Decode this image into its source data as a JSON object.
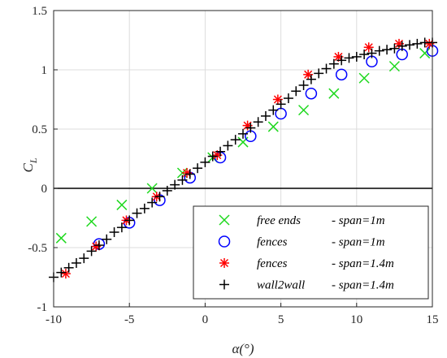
{
  "chart_data": {
    "type": "scatter",
    "xlabel": "α(°)",
    "ylabel_main": "C",
    "ylabel_sub": "L",
    "xlim": [
      -10,
      15
    ],
    "ylim": [
      -1,
      1.5
    ],
    "xticks": [
      -10,
      -5,
      0,
      5,
      10,
      15
    ],
    "yticks": [
      -1,
      -0.5,
      0,
      0.5,
      1,
      1.5
    ],
    "xtick_labels": [
      "-10",
      "-5",
      "0",
      "5",
      "10",
      "15"
    ],
    "ytick_labels": [
      "-1",
      "-0.5",
      "0",
      "0.5",
      "1",
      "1.5"
    ],
    "grid": true,
    "zero_line": true,
    "legend_position": "bottom-right",
    "series": [
      {
        "name": "free ends",
        "span": "- span=1m",
        "marker": "x",
        "color": "#1ed81e",
        "points": [
          [
            -9.5,
            -0.42
          ],
          [
            -7.5,
            -0.28
          ],
          [
            -5.5,
            -0.14
          ],
          [
            -3.5,
            0.0
          ],
          [
            -1.5,
            0.13
          ],
          [
            0.5,
            0.26
          ],
          [
            2.5,
            0.39
          ],
          [
            4.5,
            0.52
          ],
          [
            6.5,
            0.66
          ],
          [
            8.5,
            0.8
          ],
          [
            10.5,
            0.93
          ],
          [
            12.5,
            1.03
          ],
          [
            14.5,
            1.14
          ]
        ]
      },
      {
        "name": "fences",
        "span": "- span=1m",
        "marker": "circle",
        "color": "#0000ff",
        "points": [
          [
            -7,
            -0.47
          ],
          [
            -5,
            -0.29
          ],
          [
            -3,
            -0.1
          ],
          [
            -1,
            0.09
          ],
          [
            1,
            0.26
          ],
          [
            3,
            0.44
          ],
          [
            5,
            0.63
          ],
          [
            7,
            0.8
          ],
          [
            9,
            0.96
          ],
          [
            11,
            1.07
          ],
          [
            13,
            1.13
          ],
          [
            15,
            1.16
          ]
        ]
      },
      {
        "name": "fences",
        "span": "- span=1.4m",
        "marker": "asterisk",
        "color": "#ff0000",
        "points": [
          [
            -9.2,
            -0.72
          ],
          [
            -7.2,
            -0.49
          ],
          [
            -5.2,
            -0.27
          ],
          [
            -3.2,
            -0.07
          ],
          [
            -1.2,
            0.13
          ],
          [
            0.8,
            0.28
          ],
          [
            2.8,
            0.53
          ],
          [
            4.8,
            0.75
          ],
          [
            6.8,
            0.96
          ],
          [
            8.8,
            1.11
          ],
          [
            10.8,
            1.19
          ],
          [
            12.8,
            1.22
          ],
          [
            14.8,
            1.22
          ]
        ]
      },
      {
        "name": "wall2wall",
        "span": "- span=1.4m",
        "marker": "plus",
        "color": "#000000",
        "points": [
          [
            -10,
            -0.75
          ],
          [
            -9.5,
            -0.71
          ],
          [
            -9,
            -0.67
          ],
          [
            -8.5,
            -0.63
          ],
          [
            -8,
            -0.59
          ],
          [
            -7.5,
            -0.53
          ],
          [
            -7,
            -0.48
          ],
          [
            -6.5,
            -0.43
          ],
          [
            -6,
            -0.37
          ],
          [
            -5.5,
            -0.33
          ],
          [
            -5,
            -0.27
          ],
          [
            -4.5,
            -0.21
          ],
          [
            -4,
            -0.17
          ],
          [
            -3.5,
            -0.12
          ],
          [
            -3,
            -0.07
          ],
          [
            -2.5,
            -0.02
          ],
          [
            -2,
            0.03
          ],
          [
            -1.5,
            0.07
          ],
          [
            -1,
            0.12
          ],
          [
            -0.5,
            0.17
          ],
          [
            0,
            0.22
          ],
          [
            0.5,
            0.27
          ],
          [
            1,
            0.31
          ],
          [
            1.5,
            0.36
          ],
          [
            2,
            0.41
          ],
          [
            2.5,
            0.46
          ],
          [
            3,
            0.51
          ],
          [
            3.5,
            0.56
          ],
          [
            4,
            0.61
          ],
          [
            4.5,
            0.66
          ],
          [
            5,
            0.71
          ],
          [
            5.5,
            0.76
          ],
          [
            6,
            0.82
          ],
          [
            6.5,
            0.87
          ],
          [
            7,
            0.92
          ],
          [
            7.5,
            0.97
          ],
          [
            8,
            1.01
          ],
          [
            8.5,
            1.05
          ],
          [
            9,
            1.08
          ],
          [
            9.5,
            1.1
          ],
          [
            10,
            1.11
          ],
          [
            10.5,
            1.13
          ],
          [
            11,
            1.14
          ],
          [
            11.5,
            1.16
          ],
          [
            12,
            1.17
          ],
          [
            12.5,
            1.18
          ],
          [
            13,
            1.2
          ],
          [
            13.5,
            1.21
          ],
          [
            14,
            1.22
          ],
          [
            14.5,
            1.23
          ],
          [
            15,
            1.23
          ]
        ]
      }
    ]
  }
}
